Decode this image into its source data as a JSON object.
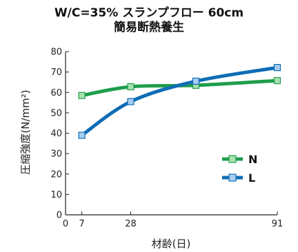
{
  "chart_data": {
    "type": "line",
    "title_line1": "W/C=35% スランプフロー 60cm",
    "title_line2": "簡易断熱養生",
    "xlabel": "材齢(日)",
    "ylabel": "圧縮強度(N/mm²)",
    "x_ticks": [
      0,
      7,
      28,
      91
    ],
    "y_ticks": [
      0,
      10,
      20,
      30,
      40,
      50,
      60,
      70,
      80
    ],
    "xlim": [
      0,
      91
    ],
    "ylim": [
      0,
      80
    ],
    "grid": false,
    "legend_position": "center-right",
    "series": [
      {
        "name": "N",
        "color": "#1f9e4b",
        "marker_fill": "#a8e0b0",
        "x": [
          7,
          28,
          56,
          91
        ],
        "y": [
          58.5,
          62.8,
          63.5,
          65.8
        ]
      },
      {
        "name": "L",
        "color": "#0f6db5",
        "marker_fill": "#a8cdf0",
        "x": [
          7,
          28,
          56,
          91
        ],
        "y": [
          39.0,
          55.5,
          65.5,
          72.2
        ]
      }
    ]
  }
}
